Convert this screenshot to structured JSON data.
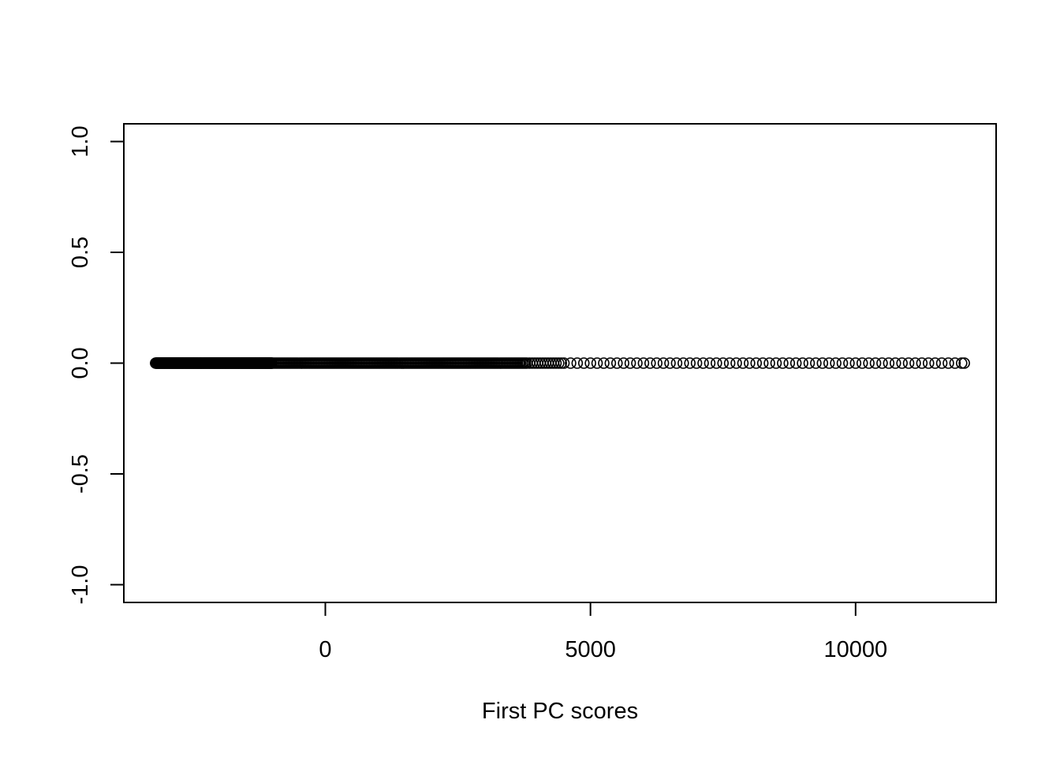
{
  "chart_data": {
    "type": "scatter",
    "title": "",
    "xlabel": "First PC scores",
    "ylabel": "",
    "xlim": [
      -3800,
      12650
    ],
    "ylim": [
      -1.08,
      1.08
    ],
    "x_ticks": [
      0,
      5000,
      10000
    ],
    "x_tick_labels": [
      "0",
      "5000",
      "10000"
    ],
    "y_ticks": [
      -1.0,
      -0.5,
      0.0,
      0.5,
      1.0
    ],
    "y_tick_labels": [
      "-1.0",
      "-0.5",
      "0.0",
      "0.5",
      "1.0"
    ],
    "grid": false,
    "legend": "none",
    "marker": "open-circle",
    "point_color": "#000000",
    "series": [
      {
        "x_range": [
          -3200,
          12050
        ],
        "y": 0,
        "density_note_segments": [
          {
            "from": -3200,
            "to": -1000,
            "spacing": 8
          },
          {
            "from": -1000,
            "to": 3800,
            "spacing": 30
          },
          {
            "from": 3800,
            "to": 4500,
            "spacing": 50
          },
          {
            "from": 4500,
            "to": 12050,
            "spacing": 125
          }
        ]
      }
    ]
  }
}
